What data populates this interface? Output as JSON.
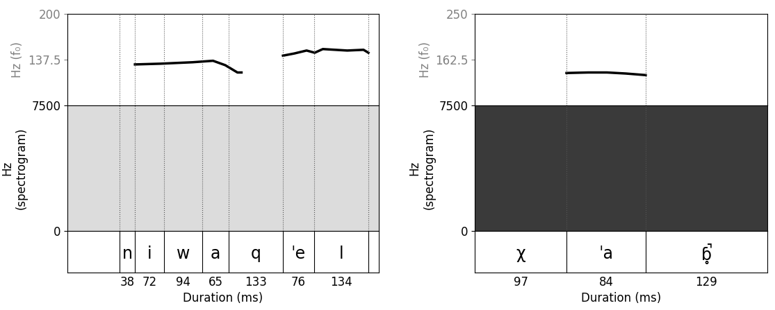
{
  "chart_data": [
    {
      "type": "line",
      "f0_ylabel": "Hz (f₀)",
      "f0_ylim": [
        75,
        200
      ],
      "f0_yticks": [
        137.5,
        200
      ],
      "spec_ylabel": "Hz\n(spectrogram)",
      "spec_ylim": [
        0,
        7500
      ],
      "spec_yticks": [
        0,
        7500
      ],
      "xlabel": "Duration (ms)",
      "xlim": [
        -128,
        638
      ],
      "segments": [
        {
          "label": "n",
          "duration": 38
        },
        {
          "label": "i",
          "duration": 72
        },
        {
          "label": "w",
          "duration": 94
        },
        {
          "label": "a",
          "duration": 65
        },
        {
          "label": "q",
          "duration": 133
        },
        {
          "label": "ˈe",
          "duration": 76
        },
        {
          "label": "l",
          "duration": 134
        }
      ],
      "series": [
        {
          "color": "#000000",
          "x": [
            38,
            100,
            180,
            230,
            260,
            290,
            300
          ],
          "values": [
            131,
            132,
            134,
            136,
            130,
            120,
            120
          ]
        },
        {
          "color": "#000000",
          "x": [
            402,
            430,
            460,
            480,
            500,
            560,
            600,
            612
          ],
          "values": [
            143,
            146,
            150,
            147,
            152,
            150,
            151,
            147
          ]
        }
      ]
    },
    {
      "type": "line",
      "f0_ylabel": "Hz (f₀)",
      "f0_ylim": [
        75,
        250
      ],
      "f0_yticks": [
        162.5,
        250
      ],
      "spec_ylabel": "Hz\n(spectrogram)",
      "spec_ylim": [
        0,
        7500
      ],
      "spec_yticks": [
        0,
        7500
      ],
      "xlabel": "Duration (ms)",
      "xlim": [
        0,
        310
      ],
      "segments": [
        {
          "label": "χ",
          "duration": 97
        },
        {
          "label": "ˈa",
          "duration": 84
        },
        {
          "label": "ɓ̥̚",
          "duration": 129
        }
      ],
      "series": [
        {
          "color": "#000000",
          "x": [
            97,
            120,
            140,
            160,
            181
          ],
          "values": [
            137,
            138,
            138,
            136,
            133
          ]
        }
      ]
    }
  ]
}
